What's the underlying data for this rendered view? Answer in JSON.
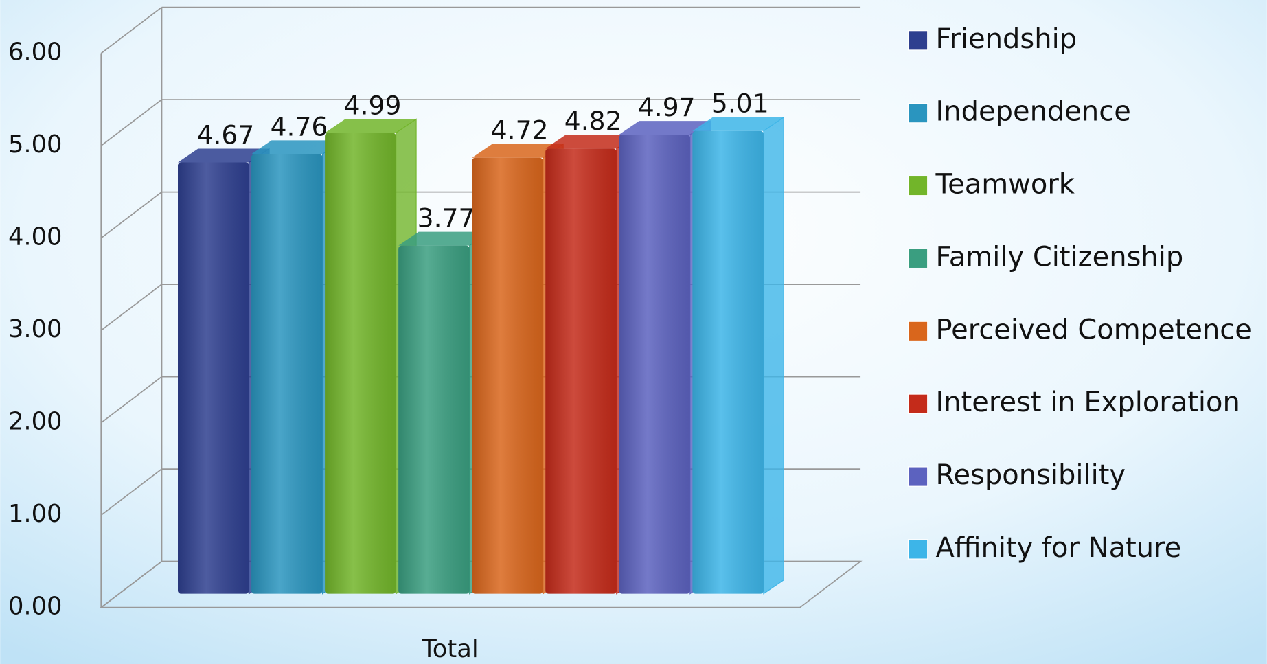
{
  "chart_data": {
    "type": "bar3d",
    "categories": [
      "Total"
    ],
    "series": [
      {
        "name": "Friendship",
        "color": "#2e3f8f",
        "values": [
          4.67
        ]
      },
      {
        "name": "Independence",
        "color": "#2a95bf",
        "values": [
          4.76
        ]
      },
      {
        "name": "Teamwork",
        "color": "#72b52a",
        "values": [
          4.99
        ]
      },
      {
        "name": "Family Citizenship",
        "color": "#3a9e80",
        "values": [
          3.77
        ]
      },
      {
        "name": "Perceived Competence",
        "color": "#d9661c",
        "values": [
          4.72
        ]
      },
      {
        "name": "Interest in Exploration",
        "color": "#c42b1a",
        "values": [
          4.82
        ]
      },
      {
        "name": "Responsibility",
        "color": "#5c62bf",
        "values": [
          4.97
        ]
      },
      {
        "name": "Affinity for Nature",
        "color": "#3db5e8",
        "values": [
          5.01
        ]
      }
    ],
    "ylim": [
      0,
      6
    ],
    "yticks": [
      {
        "value": 0,
        "label": "0.00"
      },
      {
        "value": 1,
        "label": "1.00"
      },
      {
        "value": 2,
        "label": "2.00"
      },
      {
        "value": 3,
        "label": "3.00"
      },
      {
        "value": 4,
        "label": "4.00"
      },
      {
        "value": 5,
        "label": "5.00"
      },
      {
        "value": 6,
        "label": "6.00"
      }
    ],
    "grid": true,
    "legend": "right"
  }
}
